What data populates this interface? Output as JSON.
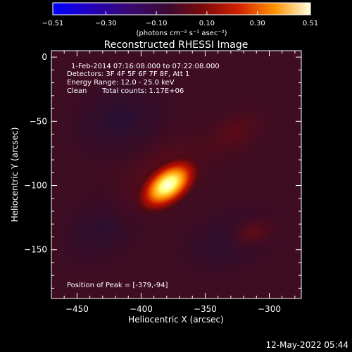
{
  "chart_data": {
    "type": "heatmap",
    "title": "Reconstructed RHESSI Image",
    "xlabel": "Heliocentric X (arcsec)",
    "ylabel": "Heliocentric Y (arcsec)",
    "xlim": [
      -470,
      -275
    ],
    "ylim": [
      -188,
      5
    ],
    "x_ticks": [
      -450,
      -400,
      -350,
      -300
    ],
    "y_ticks": [
      0,
      -50,
      -100,
      -150
    ],
    "colorbar": {
      "range": [
        -0.51,
        0.51
      ],
      "ticks": [
        "-0.51",
        "-0.30",
        "-0.10",
        "0.10",
        "0.30",
        "0.51"
      ],
      "tick_values": [
        -0.51,
        -0.3,
        -0.1,
        0.1,
        0.3,
        0.51
      ],
      "unit_label": "(photons cm⁻² s⁻¹ asec⁻²)"
    },
    "annotations": {
      "time_range": "1-Feb-2014 07:16:08.000 to 07:22:08.000",
      "detectors": "Detectors: 3F 4F 5F 6F 7F 8F, Att 1",
      "energy": "Energy Range: 12.0 - 25.0 keV",
      "method": "Clean",
      "counts": "Total counts: 1.17E+06",
      "peak": "Position of Peak = [-379,-94]"
    },
    "peak": {
      "x": -379,
      "y": -94,
      "value": 0.51
    },
    "timestamp": "12-May-2022 05:44"
  },
  "colors": {
    "background": "#000000",
    "text": "#ffffff",
    "colormap": [
      "#0000ff",
      "#2a00a0",
      "#3a0a50",
      "#6a0a10",
      "#c01a00",
      "#ff8a00",
      "#ffff80",
      "#ffffff"
    ]
  }
}
